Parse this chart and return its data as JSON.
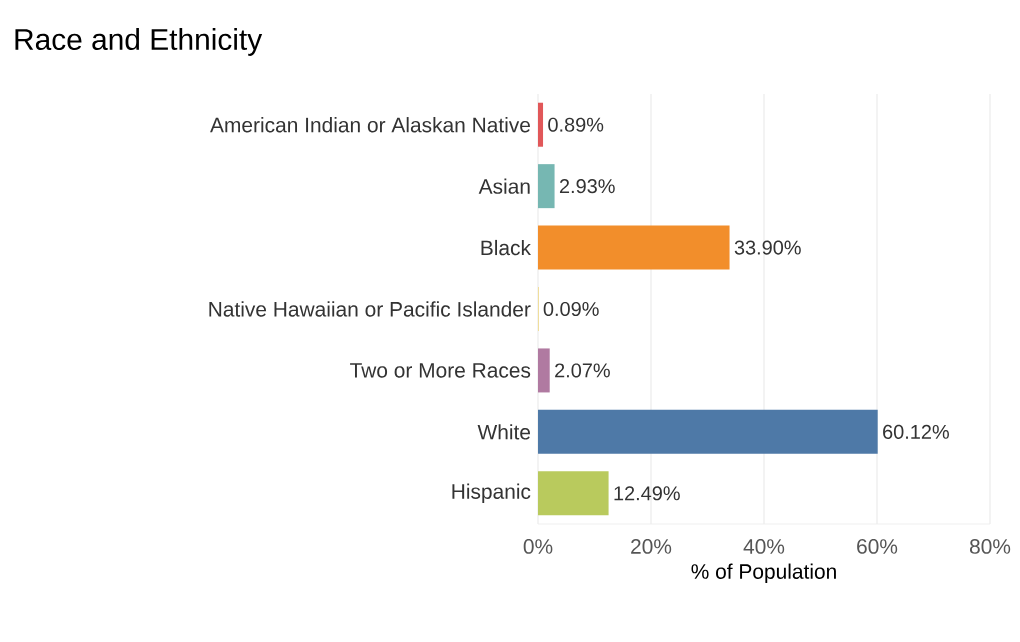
{
  "chart_data": {
    "type": "bar",
    "orientation": "horizontal",
    "title": "Race and Ethnicity",
    "xlabel": "% of Population",
    "categories": [
      "American Indian or Alaskan Native",
      "Asian",
      "Black",
      "Native Hawaiian or Pacific Islander",
      "Two or More Races",
      "White",
      "Hispanic"
    ],
    "values": [
      0.89,
      2.93,
      33.9,
      0.09,
      2.07,
      60.12,
      12.49
    ],
    "value_labels": [
      "0.89%",
      "2.93%",
      "33.90%",
      "0.09%",
      "2.07%",
      "60.12%",
      "12.49%"
    ],
    "colors": [
      "#e15759",
      "#76b7b2",
      "#f28e2b",
      "#edc948",
      "#b07aa1",
      "#4e79a7",
      "#b9ca5d"
    ],
    "xlim": [
      0,
      80
    ],
    "xticks": [
      {
        "value": 0,
        "label": "0%"
      },
      {
        "value": 20,
        "label": "20%"
      },
      {
        "value": 40,
        "label": "40%"
      },
      {
        "value": 60,
        "label": "60%"
      },
      {
        "value": 80,
        "label": "80%"
      }
    ],
    "grid": "x"
  }
}
